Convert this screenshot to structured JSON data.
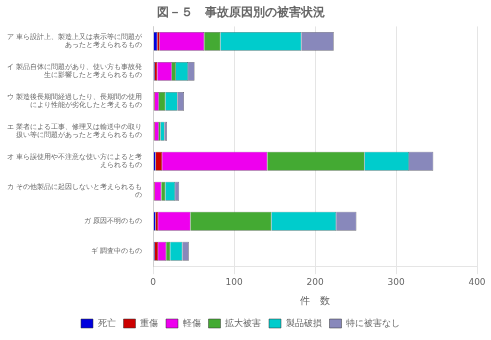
{
  "chart_data": {
    "type": "bar",
    "orientation": "horizontal",
    "stacked": true,
    "title": "図－５　事故原因別の被害状況",
    "categories": [
      "ア 車ら設計上、製造上又は表示等に問題が\n　あったと考えられるもの",
      "イ 製品自体に問題があり、使い方も事故発\n　生に影響したと考えられるもの",
      "ウ 製造後長期間経過したり、長期間の使用\n　により性能が劣化したと考えるもの",
      "エ 業者による工事、修理又は輸送中の取り\n　扱い等に問題があったと考えられるもの",
      "オ 車ら誤使用や不注意な使い方によると考\n　えられるもの",
      "カ その他製品に起因しないと考えられるも\n　の",
      "ガ 原因不明のもの",
      "ギ 調査中のもの"
    ],
    "series": [
      {
        "name": "死亡",
        "color": "#0000dd",
        "values": [
          5,
          2,
          1,
          1,
          3,
          1,
          3,
          2
        ]
      },
      {
        "name": "重傷",
        "color": "#cc0000",
        "values": [
          3,
          3,
          1,
          1,
          8,
          1,
          3,
          4
        ]
      },
      {
        "name": "軽傷",
        "color": "#ee00ee",
        "values": [
          55,
          18,
          5,
          5,
          130,
          8,
          40,
          10
        ]
      },
      {
        "name": "拡大被害",
        "color": "#44aa33",
        "values": [
          20,
          5,
          8,
          2,
          120,
          5,
          100,
          5
        ]
      },
      {
        "name": "製品破損",
        "color": "#00cccc",
        "values": [
          100,
          15,
          15,
          5,
          55,
          12,
          80,
          15
        ]
      },
      {
        "name": "特に被害なし",
        "color": "#8888bb",
        "values": [
          40,
          8,
          8,
          3,
          30,
          5,
          25,
          8
        ]
      }
    ],
    "xlabel": "件　数",
    "xlim": [
      0,
      400
    ],
    "xticks": [
      0,
      100,
      200,
      300,
      400
    ],
    "grid": true,
    "legend": "bottom"
  }
}
